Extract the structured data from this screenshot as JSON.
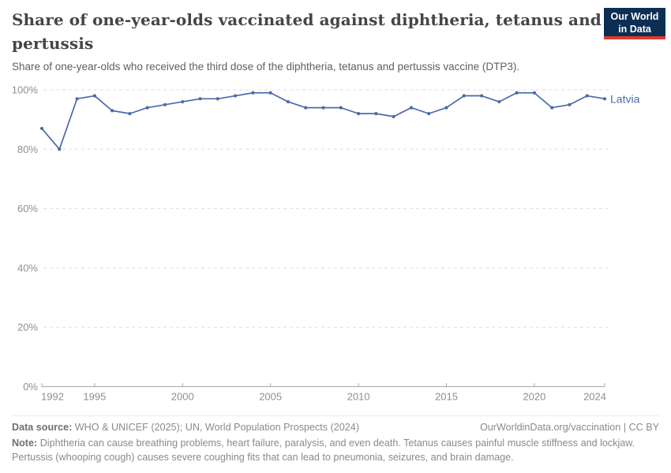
{
  "header": {
    "title": "Share of one-year-olds vaccinated against diphtheria, tetanus and pertussis",
    "subtitle": "Share of one-year-olds who received the third dose of the diphtheria, tetanus and pertussis vaccine (DTP3).",
    "logo": {
      "line1": "Our World",
      "line2": "in Data"
    }
  },
  "chart_data": {
    "type": "line",
    "title": "Share of one-year-olds vaccinated against diphtheria, tetanus and pertussis",
    "xlabel": "",
    "ylabel": "",
    "xlim": [
      1992,
      2024
    ],
    "ylim": [
      0,
      100
    ],
    "grid": "horizontal-dashed",
    "legend": "end-of-line-label",
    "x": [
      1992,
      1993,
      1994,
      1995,
      1996,
      1997,
      1998,
      1999,
      2000,
      2001,
      2002,
      2003,
      2004,
      2005,
      2006,
      2007,
      2008,
      2009,
      2010,
      2011,
      2012,
      2013,
      2014,
      2015,
      2016,
      2017,
      2018,
      2019,
      2020,
      2021,
      2022,
      2023,
      2024
    ],
    "series": [
      {
        "name": "Latvia",
        "color": "#4a6ba8",
        "values": [
          87,
          80,
          97,
          98,
          93,
          92,
          94,
          95,
          96,
          97,
          97,
          98,
          99,
          99,
          96,
          94,
          94,
          94,
          92,
          92,
          91,
          94,
          92,
          94,
          98,
          98,
          96,
          99,
          99,
          94,
          95,
          98,
          97
        ]
      }
    ],
    "x_ticks": [
      {
        "value": 1992,
        "label": "1992"
      },
      {
        "value": 1995,
        "label": "1995"
      },
      {
        "value": 2000,
        "label": "2000"
      },
      {
        "value": 2005,
        "label": "2005"
      },
      {
        "value": 2010,
        "label": "2010"
      },
      {
        "value": 2015,
        "label": "2015"
      },
      {
        "value": 2020,
        "label": "2020"
      },
      {
        "value": 2024,
        "label": "2024"
      }
    ],
    "y_ticks": [
      {
        "value": 0,
        "label": "0%"
      },
      {
        "value": 20,
        "label": "20%"
      },
      {
        "value": 40,
        "label": "40%"
      },
      {
        "value": 60,
        "label": "60%"
      },
      {
        "value": 80,
        "label": "80%"
      },
      {
        "value": 100,
        "label": "100%"
      }
    ]
  },
  "footer": {
    "datasource_label": "Data source:",
    "datasource": "WHO & UNICEF (2025); UN, World Population Prospects (2024)",
    "link": "OurWorldinData.org/vaccination | CC BY",
    "note_label": "Note:",
    "note": "Diphtheria can cause breathing problems, heart failure, paralysis, and even death. Tetanus causes painful muscle stiffness and lockjaw. Pertussis (whooping cough) causes severe coughing fits that can lead to pneumonia, seizures, and brain damage."
  },
  "colors": {
    "series_line": "#4a6ba8",
    "grid": "#dddddd",
    "axis": "#a8a8a8",
    "tick_label": "#8f8f8f",
    "logo_navy": "#0d2e53",
    "logo_red": "#e0392f",
    "title_text": "#454545",
    "subtitle_text": "#5f5f5f",
    "footer_text": "#8a8a8a"
  }
}
